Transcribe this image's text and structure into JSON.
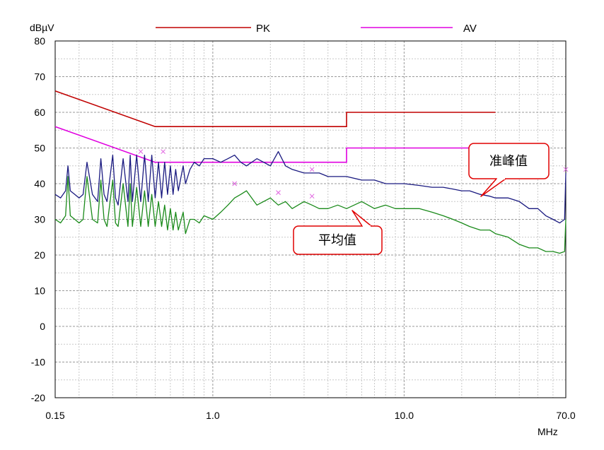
{
  "chart_data": {
    "type": "line",
    "ylabel": "dBµV",
    "xunit": "MHz",
    "x_scale": "log",
    "xlim": [
      0.15,
      70.0
    ],
    "ylim": [
      -20,
      80
    ],
    "x_ticks": [
      {
        "value": 0.15,
        "label": "0.15"
      },
      {
        "value": 1.0,
        "label": "1.0"
      },
      {
        "value": 10.0,
        "label": "10.0"
      },
      {
        "value": 70.0,
        "label": "70.0"
      }
    ],
    "y_ticks": [
      80,
      70,
      60,
      50,
      40,
      30,
      20,
      10,
      0,
      -10,
      -20
    ],
    "grid": true,
    "legend_position": "top",
    "legend": [
      {
        "name": "PK",
        "color": "#c00000"
      },
      {
        "name": "AV",
        "color": "#e000e0"
      }
    ],
    "limit_lines": [
      {
        "name": "PK",
        "color": "#c00000",
        "points": [
          [
            0.15,
            66
          ],
          [
            0.5,
            56
          ],
          [
            5.0,
            56
          ],
          [
            5.0,
            60
          ],
          [
            30.0,
            60
          ]
        ]
      },
      {
        "name": "AV",
        "color": "#e000e0",
        "points": [
          [
            0.15,
            56
          ],
          [
            0.5,
            46
          ],
          [
            5.0,
            46
          ],
          [
            5.0,
            50
          ],
          [
            30.0,
            50
          ]
        ]
      }
    ],
    "series": [
      {
        "color": "#1a1a80",
        "x": [
          0.15,
          0.16,
          0.17,
          0.175,
          0.18,
          0.19,
          0.2,
          0.21,
          0.22,
          0.235,
          0.25,
          0.26,
          0.27,
          0.28,
          0.3,
          0.31,
          0.32,
          0.34,
          0.36,
          0.37,
          0.38,
          0.4,
          0.42,
          0.44,
          0.46,
          0.48,
          0.5,
          0.52,
          0.54,
          0.56,
          0.58,
          0.6,
          0.62,
          0.64,
          0.66,
          0.7,
          0.72,
          0.76,
          0.8,
          0.85,
          0.9,
          1.0,
          1.1,
          1.2,
          1.3,
          1.4,
          1.5,
          1.7,
          2.0,
          2.2,
          2.4,
          2.6,
          3.0,
          3.3,
          3.6,
          4.0,
          4.5,
          5.0,
          6.0,
          7.0,
          8.0,
          9.0,
          10.0,
          12.0,
          14.0,
          16.0,
          18.0,
          20.0,
          22.0,
          25.0,
          28.0,
          30.0,
          35.0,
          40.0,
          45.0,
          50.0,
          55.0,
          60.0,
          65.0,
          69.0,
          70.0
        ],
        "values": [
          37,
          36,
          38,
          45,
          38,
          37,
          36,
          37,
          46,
          37,
          35,
          47,
          37,
          35,
          48,
          36,
          34,
          47,
          35,
          48,
          35,
          48,
          35,
          48,
          35,
          48,
          36,
          46,
          36,
          46,
          37,
          45,
          37,
          44,
          38,
          45,
          40,
          44,
          46,
          45,
          47,
          47,
          46,
          47,
          48,
          46,
          45,
          47,
          45,
          49,
          45,
          44,
          43,
          43,
          43,
          42,
          42,
          42,
          41,
          41,
          40,
          40,
          40,
          39.5,
          39,
          39,
          38.5,
          38,
          38,
          37,
          36.5,
          36,
          36,
          35,
          33,
          33,
          31,
          30,
          29,
          30,
          43
        ]
      },
      {
        "color": "#1a8a1a",
        "x": [
          0.15,
          0.16,
          0.17,
          0.175,
          0.18,
          0.19,
          0.2,
          0.21,
          0.22,
          0.235,
          0.25,
          0.26,
          0.27,
          0.28,
          0.3,
          0.31,
          0.32,
          0.34,
          0.36,
          0.37,
          0.38,
          0.4,
          0.42,
          0.44,
          0.46,
          0.48,
          0.5,
          0.52,
          0.54,
          0.56,
          0.58,
          0.6,
          0.62,
          0.64,
          0.66,
          0.7,
          0.72,
          0.76,
          0.8,
          0.85,
          0.9,
          1.0,
          1.1,
          1.2,
          1.3,
          1.4,
          1.5,
          1.7,
          2.0,
          2.2,
          2.4,
          2.6,
          3.0,
          3.3,
          3.6,
          4.0,
          4.5,
          5.0,
          6.0,
          7.0,
          8.0,
          9.0,
          10.0,
          12.0,
          14.0,
          16.0,
          18.0,
          20.0,
          22.0,
          25.0,
          28.0,
          30.0,
          35.0,
          40.0,
          45.0,
          50.0,
          55.0,
          60.0,
          65.0,
          69.0,
          70.0
        ],
        "values": [
          30,
          29,
          31,
          42,
          31,
          30,
          29,
          30,
          42,
          30,
          29,
          41,
          30,
          28,
          41,
          29,
          28,
          40,
          28,
          40,
          28,
          39,
          28,
          38,
          28,
          37,
          28,
          35,
          28,
          34,
          27,
          33,
          27,
          32,
          27,
          32,
          26,
          30,
          30,
          29,
          31,
          30,
          32,
          34,
          36,
          37,
          38,
          34,
          36,
          34,
          35,
          33,
          35,
          34,
          33,
          33,
          34,
          33,
          35,
          33,
          34,
          33,
          33,
          33,
          32,
          31,
          30,
          29,
          28,
          27,
          27,
          26,
          25,
          23,
          22,
          22,
          21,
          21,
          20.5,
          21,
          30
        ]
      }
    ],
    "peak_markers": [
      {
        "x": 0.42,
        "y": 49
      },
      {
        "x": 0.55,
        "y": 49
      },
      {
        "x": 1.3,
        "y": 40
      },
      {
        "x": 2.2,
        "y": 37.5
      },
      {
        "x": 3.3,
        "y": 36.5
      },
      {
        "x": 3.3,
        "y": 44
      },
      {
        "x": 70.0,
        "y": 44
      }
    ],
    "annotations": [
      {
        "text": "准峰值",
        "target": "quasi-peak"
      },
      {
        "text": "平均值",
        "target": "average"
      }
    ]
  }
}
